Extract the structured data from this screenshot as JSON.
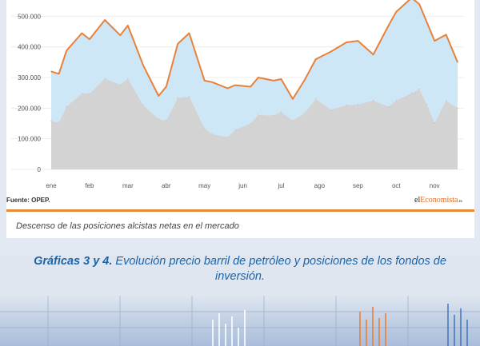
{
  "chart_data": {
    "type": "area",
    "x": [
      "ene",
      "ene",
      "ene",
      "feb",
      "feb",
      "feb",
      "mar",
      "mar",
      "mar",
      "mar",
      "abr",
      "abr",
      "abr",
      "abr",
      "may",
      "may",
      "may",
      "may",
      "jun",
      "jun",
      "jun",
      "jun",
      "jul",
      "jul",
      "jul",
      "ago",
      "ago",
      "ago",
      "sep",
      "sep",
      "sep",
      "oct",
      "oct",
      "oct",
      "oct",
      "nov"
    ],
    "x_positions": [
      0,
      0.2,
      0.4,
      0.8,
      1.0,
      1.4,
      1.8,
      2.0,
      2.4,
      2.8,
      3.0,
      3.3,
      3.6,
      4.0,
      4.2,
      4.6,
      4.8,
      5.2,
      5.4,
      5.8,
      6.0,
      6.3,
      6.6,
      6.9,
      7.3,
      7.7,
      8.0,
      8.4,
      8.8,
      9.0,
      9.4,
      9.6,
      9.8,
      10.0,
      10.3,
      10.6
    ],
    "xticks": [
      "ene",
      "feb",
      "mar",
      "abr",
      "may",
      "jun",
      "jul",
      "ago",
      "sep",
      "oct",
      "nov"
    ],
    "series": [
      {
        "values": [
          320000,
          312000,
          388000,
          445000,
          425000,
          488000,
          438000,
          470000,
          340000,
          240000,
          270000,
          410000,
          445000,
          290000,
          285000,
          265000,
          275000,
          270000,
          300000,
          290000,
          295000,
          230000,
          290000,
          360000,
          385000,
          415000,
          420000,
          375000,
          470000,
          515000,
          560000,
          540000,
          480000,
          420000,
          440000,
          350000
        ],
        "color": "#e8813a"
      },
      {
        "values": [
          158000,
          153000,
          205000,
          248000,
          248000,
          297000,
          277000,
          297000,
          210000,
          165000,
          160000,
          233000,
          238000,
          135000,
          115000,
          105000,
          130000,
          150000,
          178000,
          176000,
          188000,
          160000,
          183000,
          230000,
          195000,
          210000,
          212000,
          225000,
          205000,
          225000,
          250000,
          262000,
          212000,
          152000,
          225000,
          200000
        ],
        "color": "#d3d3d3"
      }
    ],
    "ylim": [
      0,
      535000
    ],
    "yticks": [
      "0",
      "100.000",
      "200.000",
      "300.000",
      "400.000",
      "500.000"
    ],
    "fill_between_color": "#cde7f7",
    "grid": true
  },
  "source_label": "Fuente: OPEP.",
  "logo_text": [
    "el",
    "Economista",
    ".es"
  ],
  "inner_caption": "Descenso de las posiciones alcistas netas en el mercado",
  "figure_caption": {
    "lead": "Gráficas 3 y 4.",
    "rest": " Evolución precio barril de petróleo y posiciones de los fondos de inversión."
  }
}
